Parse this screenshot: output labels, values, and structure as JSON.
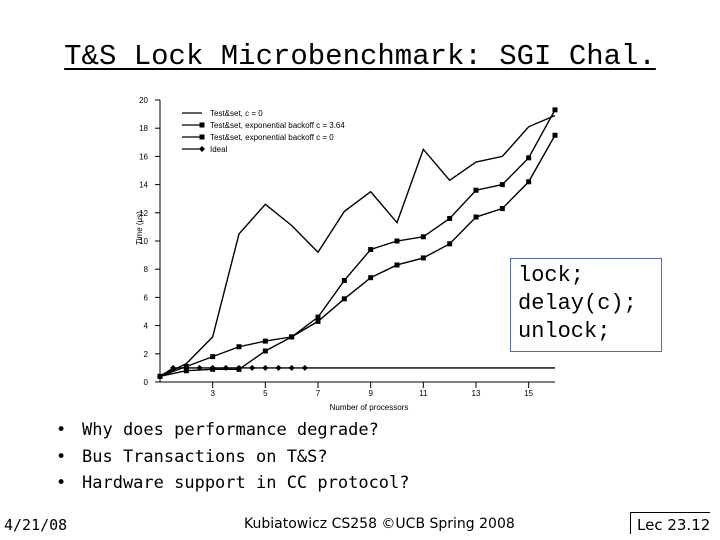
{
  "slide": {
    "title": "T&S Lock Microbenchmark: SGI Chal.",
    "code_lines": [
      "lock;",
      "delay(c);",
      "unlock;"
    ],
    "bullets": [
      "Why does performance degrade?",
      "Bus Transactions on T&S?",
      "Hardware support in CC protocol?"
    ],
    "footer": {
      "date": "4/21/08",
      "course": "Kubiatowicz CS258 ©UCB Spring 2008",
      "lecture": "Lec 23.12"
    }
  },
  "chart_data": {
    "type": "line",
    "xlabel": "Number of processors",
    "ylabel": "Time (µs)",
    "xlim": [
      1,
      16
    ],
    "ylim": [
      0,
      20
    ],
    "x_ticks": [
      3,
      5,
      7,
      9,
      11,
      13,
      15
    ],
    "y_ticks": [
      0,
      2,
      4,
      6,
      8,
      10,
      12,
      14,
      16,
      18,
      20
    ],
    "legend_position": "top-left",
    "series": [
      {
        "name": "Test&set, c = 0",
        "marker": "none",
        "x": [
          1,
          2,
          3,
          4,
          5,
          6,
          7,
          8,
          9,
          10,
          11,
          12,
          13,
          14,
          15,
          16
        ],
        "values": [
          0.4,
          1.3,
          3.2,
          10.5,
          12.6,
          11.1,
          9.2,
          12.1,
          13.5,
          11.3,
          16.5,
          14.3,
          15.6,
          16.0,
          18.1,
          18.9
        ]
      },
      {
        "name": "Test&set, exponential backoff c = 3.64",
        "marker": "square-filled",
        "x": [
          1,
          2,
          3,
          4,
          5,
          6,
          7,
          8,
          9,
          10,
          11,
          12,
          13,
          14,
          15,
          16
        ],
        "values": [
          0.4,
          0.8,
          0.9,
          0.9,
          2.2,
          3.2,
          4.3,
          5.9,
          7.4,
          8.3,
          8.8,
          9.8,
          11.7,
          12.3,
          14.2,
          17.5
        ]
      },
      {
        "name": "Test&set, exponential backoff c = 0",
        "marker": "square-filled",
        "x": [
          1,
          2,
          3,
          4,
          5,
          6,
          7,
          8,
          9,
          10,
          11,
          12,
          13,
          14,
          15,
          16
        ],
        "values": [
          0.4,
          1.1,
          1.8,
          2.5,
          2.9,
          3.2,
          4.6,
          7.2,
          9.4,
          10.0,
          10.3,
          11.6,
          13.6,
          14.0,
          15.9,
          19.3
        ]
      },
      {
        "name": "Ideal",
        "marker": "diamond-filled",
        "x": [
          1,
          1.5,
          2,
          2.5,
          3,
          3.5,
          4,
          4.5,
          5,
          5.5,
          6,
          6.5,
          16
        ],
        "values": [
          0.4,
          1.0,
          1.0,
          1.0,
          1.0,
          1.0,
          1.0,
          1.0,
          1.0,
          1.0,
          1.0,
          1.0,
          1.0
        ]
      }
    ]
  }
}
